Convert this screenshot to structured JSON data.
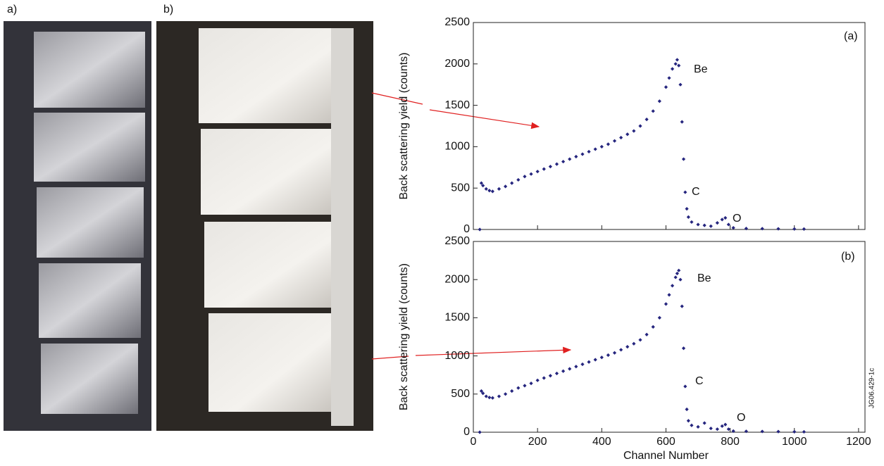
{
  "panel_labels": [
    "a)",
    "b)"
  ],
  "side_note": "JG06.429-1c",
  "chart_data": [
    {
      "type": "scatter",
      "ylabel": "Back scattering yield (counts)",
      "color": "#25257e",
      "annotations": [
        "(a)",
        "Be",
        "C",
        "O"
      ],
      "xlim": [
        0,
        1220
      ],
      "xticks": [
        0,
        200,
        400,
        600,
        800,
        1000,
        1200
      ],
      "show_xtick_labels": false,
      "ylim": [
        0,
        2500
      ],
      "yticks": [
        0,
        500,
        1000,
        1500,
        2000,
        2500
      ],
      "x": [
        20,
        25,
        30,
        40,
        50,
        60,
        80,
        100,
        120,
        140,
        160,
        180,
        200,
        220,
        240,
        260,
        280,
        300,
        320,
        340,
        360,
        380,
        400,
        420,
        440,
        460,
        480,
        500,
        520,
        540,
        560,
        580,
        600,
        610,
        620,
        630,
        635,
        640,
        645,
        650,
        655,
        660,
        665,
        670,
        680,
        700,
        720,
        740,
        760,
        775,
        785,
        795,
        810,
        850,
        900,
        950,
        1000,
        1030
      ],
      "values": [
        0,
        560,
        530,
        490,
        470,
        460,
        490,
        520,
        560,
        600,
        640,
        670,
        700,
        730,
        760,
        790,
        820,
        850,
        880,
        910,
        940,
        970,
        1000,
        1030,
        1070,
        1110,
        1150,
        1190,
        1250,
        1330,
        1430,
        1550,
        1720,
        1830,
        1940,
        2000,
        2050,
        1980,
        1750,
        1300,
        850,
        450,
        250,
        150,
        90,
        60,
        50,
        40,
        80,
        120,
        140,
        60,
        20,
        12,
        10,
        8,
        6,
        5
      ]
    },
    {
      "type": "scatter",
      "ylabel": "Back scattering yield (counts)",
      "xlabel": "Channel Number",
      "color": "#25257e",
      "annotations": [
        "(b)",
        "Be",
        "C",
        "O"
      ],
      "xlim": [
        0,
        1220
      ],
      "xticks": [
        0,
        200,
        400,
        600,
        800,
        1000,
        1200
      ],
      "show_xtick_labels": true,
      "ylim": [
        0,
        2500
      ],
      "yticks": [
        0,
        500,
        1000,
        1500,
        2000,
        2500
      ],
      "x": [
        20,
        25,
        30,
        40,
        50,
        60,
        80,
        100,
        120,
        140,
        160,
        180,
        200,
        220,
        240,
        260,
        280,
        300,
        320,
        340,
        360,
        380,
        400,
        420,
        440,
        460,
        480,
        500,
        520,
        540,
        560,
        580,
        600,
        610,
        620,
        630,
        635,
        640,
        645,
        650,
        655,
        660,
        665,
        670,
        680,
        700,
        720,
        740,
        760,
        775,
        785,
        795,
        810,
        850,
        900,
        950,
        1000,
        1030
      ],
      "values": [
        0,
        540,
        510,
        470,
        455,
        450,
        470,
        500,
        540,
        580,
        610,
        640,
        680,
        710,
        740,
        770,
        800,
        830,
        860,
        890,
        920,
        950,
        980,
        1010,
        1040,
        1080,
        1120,
        1160,
        1210,
        1280,
        1380,
        1500,
        1680,
        1800,
        1920,
        2030,
        2080,
        2120,
        2000,
        1650,
        1100,
        600,
        300,
        150,
        90,
        70,
        120,
        50,
        40,
        80,
        100,
        40,
        15,
        12,
        10,
        8,
        6,
        5
      ]
    }
  ]
}
